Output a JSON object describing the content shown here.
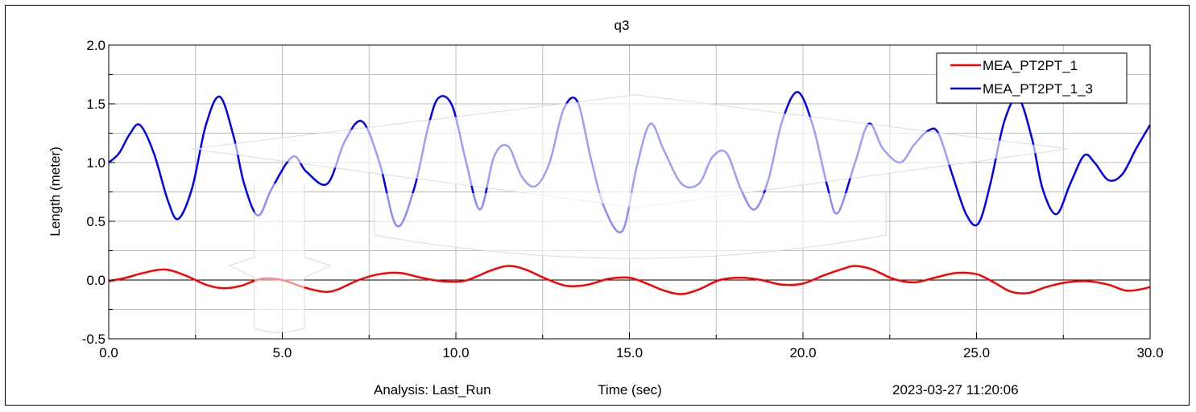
{
  "chart_data": {
    "type": "line",
    "title": "q3",
    "xlabel": "Time (sec)",
    "ylabel": "Length (meter)",
    "xlim": [
      0,
      30
    ],
    "ylim": [
      -0.5,
      2.0
    ],
    "xticks": [
      "0.0",
      "5.0",
      "10.0",
      "15.0",
      "20.0",
      "25.0",
      "30.0"
    ],
    "yticks": [
      "-0.5",
      "0.0",
      "0.5",
      "1.0",
      "1.5",
      "2.0"
    ],
    "grid": true,
    "legend_position": "top-right",
    "series": [
      {
        "name": "MEA_PT2PT_1",
        "color": "#ff0000",
        "x": [
          0.0,
          0.5,
          1.0,
          1.6,
          2.2,
          2.8,
          3.3,
          3.8,
          4.4,
          5.0,
          5.6,
          6.2,
          6.6,
          7.2,
          7.8,
          8.4,
          9.0,
          9.6,
          10.2,
          10.6,
          11.0,
          11.5,
          12.0,
          12.6,
          13.2,
          13.8,
          14.4,
          15.0,
          15.5,
          16.0,
          16.5,
          17.0,
          17.6,
          18.2,
          18.8,
          19.4,
          20.0,
          20.6,
          21.2,
          21.5,
          22.0,
          22.6,
          23.2,
          23.8,
          24.4,
          25.0,
          25.5,
          26.0,
          26.5,
          27.0,
          27.6,
          28.2,
          28.8,
          29.3,
          29.7,
          30.0
        ],
        "y": [
          -0.01,
          0.02,
          0.06,
          0.09,
          0.04,
          -0.04,
          -0.07,
          -0.05,
          0.01,
          0.0,
          -0.06,
          -0.1,
          -0.08,
          0.0,
          0.05,
          0.06,
          0.02,
          -0.01,
          -0.01,
          0.03,
          0.08,
          0.12,
          0.09,
          0.01,
          -0.05,
          -0.04,
          0.01,
          0.02,
          -0.03,
          -0.09,
          -0.12,
          -0.08,
          0.0,
          0.02,
          0.0,
          -0.04,
          -0.03,
          0.04,
          0.1,
          0.12,
          0.09,
          0.01,
          -0.02,
          0.02,
          0.06,
          0.05,
          -0.02,
          -0.1,
          -0.11,
          -0.06,
          -0.02,
          -0.01,
          -0.04,
          -0.09,
          -0.08,
          -0.06
        ]
      },
      {
        "name": "MEA_PT2PT_1_3",
        "color": "#0000ff",
        "x": [
          0.0,
          0.3,
          0.6,
          0.9,
          1.3,
          1.7,
          2.0,
          2.4,
          2.8,
          3.2,
          3.6,
          3.9,
          4.3,
          4.7,
          5.3,
          5.7,
          6.3,
          6.8,
          7.3,
          7.8,
          8.3,
          8.8,
          9.2,
          9.5,
          9.9,
          10.3,
          10.7,
          11.1,
          11.5,
          11.9,
          12.3,
          12.7,
          13.1,
          13.5,
          13.9,
          14.3,
          14.8,
          15.2,
          15.6,
          16.0,
          16.5,
          17.0,
          17.4,
          17.8,
          18.2,
          18.6,
          19.0,
          19.4,
          19.85,
          20.3,
          20.7,
          21.0,
          21.5,
          21.9,
          22.3,
          22.8,
          23.2,
          23.6,
          23.9,
          24.3,
          24.7,
          25.05,
          25.4,
          25.8,
          26.2,
          26.6,
          26.9,
          27.3,
          27.7,
          28.1,
          28.4,
          28.8,
          29.2,
          29.6,
          30.0
        ],
        "y": [
          1.0,
          1.08,
          1.24,
          1.32,
          1.08,
          0.68,
          0.52,
          0.78,
          1.32,
          1.56,
          1.22,
          0.82,
          0.55,
          0.78,
          1.05,
          0.92,
          0.82,
          1.18,
          1.35,
          1.0,
          0.46,
          0.78,
          1.3,
          1.55,
          1.48,
          1.0,
          0.6,
          1.05,
          1.14,
          0.88,
          0.8,
          1.0,
          1.45,
          1.52,
          1.02,
          0.6,
          0.42,
          0.95,
          1.33,
          1.1,
          0.82,
          0.82,
          1.05,
          1.08,
          0.78,
          0.6,
          0.85,
          1.35,
          1.6,
          1.3,
          0.8,
          0.57,
          1.0,
          1.33,
          1.12,
          1.0,
          1.15,
          1.27,
          1.25,
          0.9,
          0.56,
          0.48,
          0.82,
          1.35,
          1.55,
          1.2,
          0.78,
          0.56,
          0.82,
          1.06,
          1.0,
          0.85,
          0.9,
          1.12,
          1.32
        ]
      }
    ]
  },
  "footer": {
    "analysis": "Analysis:  Last_Run",
    "timestamp": "2023-03-27 11:20:06"
  }
}
